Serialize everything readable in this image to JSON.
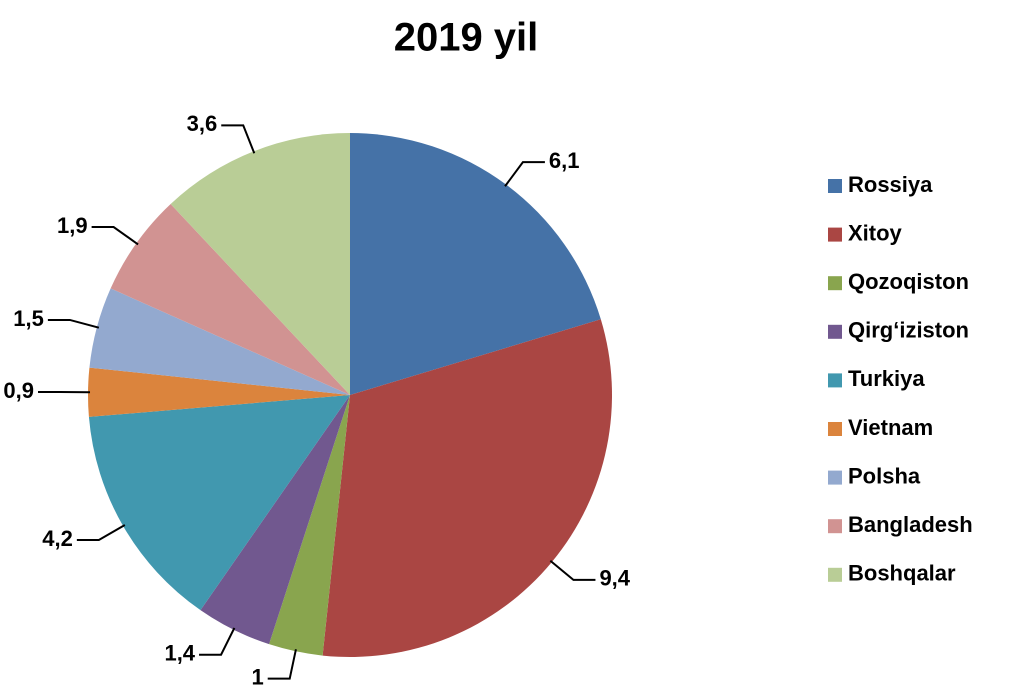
{
  "chart_data": {
    "type": "pie",
    "title": "2019 yil",
    "categories": [
      "Rossiya",
      "Xitoy",
      "Qozoqiston",
      "Qirg‘iziston",
      "Turkiya",
      "Vietnam",
      "Polsha",
      "Bangladesh",
      "Boshqalar"
    ],
    "values": [
      6.1,
      9.4,
      1,
      1.4,
      4.2,
      0.9,
      1.5,
      1.9,
      3.6
    ],
    "value_labels": [
      "6,1",
      "9,4",
      "1",
      "1,4",
      "4,2",
      "0,9",
      "1,5",
      "1,9",
      "3,6"
    ],
    "colors": [
      "#4572a7",
      "#aa4643",
      "#89a54e",
      "#71588f",
      "#4198af",
      "#db843d",
      "#93a9cf",
      "#d19392",
      "#b9cd96"
    ],
    "legend": "right"
  }
}
